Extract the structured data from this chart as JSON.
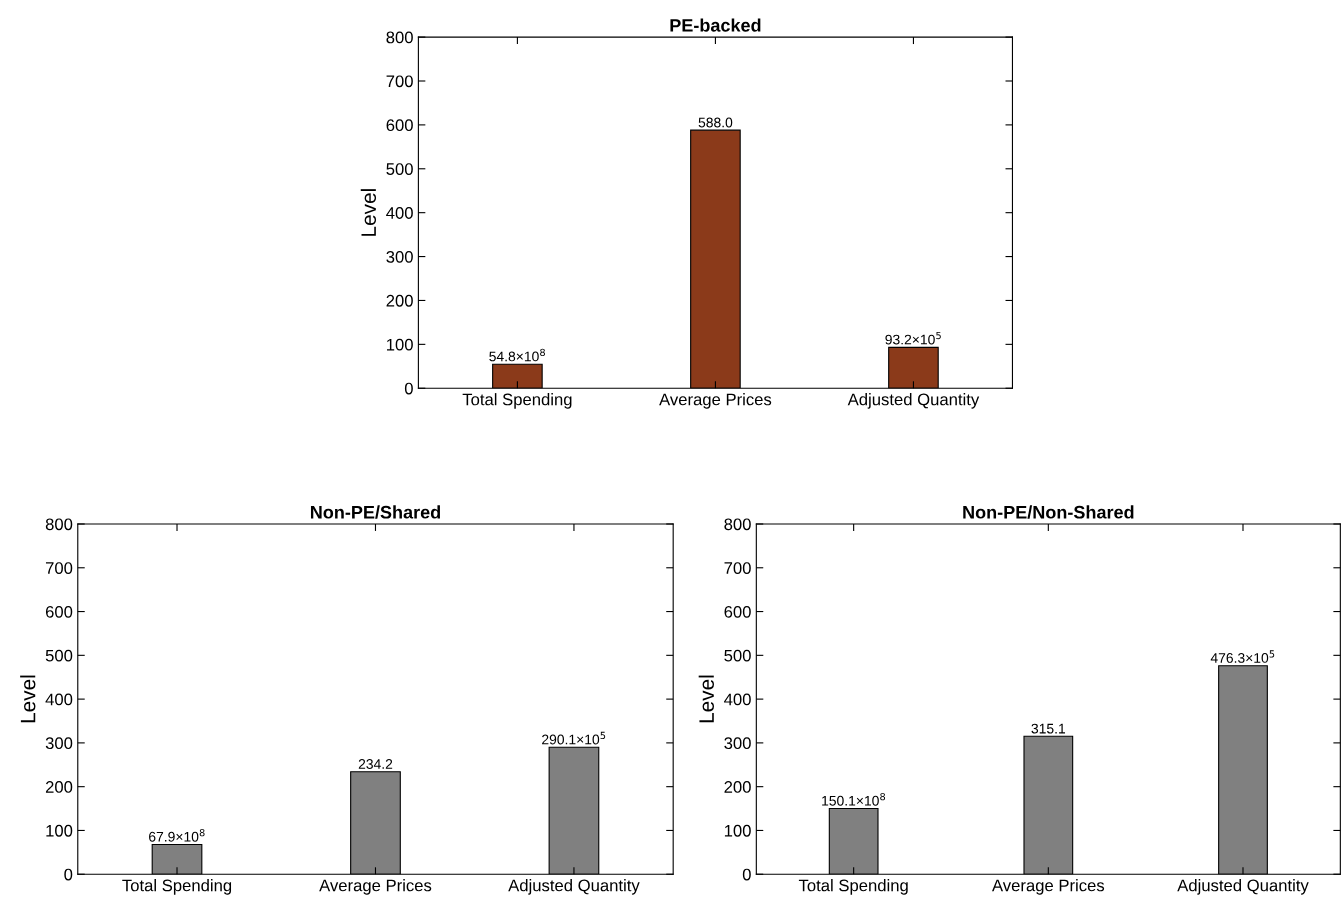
{
  "chart_data": [
    {
      "type": "bar",
      "title": "PE-backed",
      "ylabel": "Level",
      "categories": [
        "Total Spending",
        "Average Prices",
        "Adjusted Quantity"
      ],
      "series": [
        {
          "color": "#8b3a1a",
          "values": [
            54.8,
            588.0,
            93.2
          ]
        }
      ],
      "value_labels": [
        "54.8×10$^{8}$",
        "588.0",
        "93.2×10$^{5}$"
      ],
      "ylim": [
        0,
        800
      ],
      "yticks": [
        0,
        100,
        200,
        300,
        400,
        500,
        600,
        700,
        800
      ],
      "grid": false
    },
    {
      "type": "bar",
      "title": "Non-PE/Shared",
      "ylabel": "Level",
      "categories": [
        "Total Spending",
        "Average Prices",
        "Adjusted Quantity"
      ],
      "series": [
        {
          "color": "#808080",
          "values": [
            67.9,
            234.2,
            290.1
          ]
        }
      ],
      "value_labels": [
        "67.9×10$^{8}$",
        "234.2",
        "290.1×10$^{5}$"
      ],
      "ylim": [
        0,
        800
      ],
      "yticks": [
        0,
        100,
        200,
        300,
        400,
        500,
        600,
        700,
        800
      ],
      "grid": false
    },
    {
      "type": "bar",
      "title": "Non-PE/Non-Shared",
      "ylabel": "Level",
      "categories": [
        "Total Spending",
        "Average Prices",
        "Adjusted Quantity"
      ],
      "series": [
        {
          "color": "#808080",
          "values": [
            150.1,
            315.1,
            476.3
          ]
        }
      ],
      "value_labels": [
        "150.1×10$^{8}$",
        "315.1",
        "476.3×10$^{5}$"
      ],
      "ylim": [
        0,
        800
      ],
      "yticks": [
        0,
        100,
        200,
        300,
        400,
        500,
        600,
        700,
        800
      ],
      "grid": false
    }
  ]
}
